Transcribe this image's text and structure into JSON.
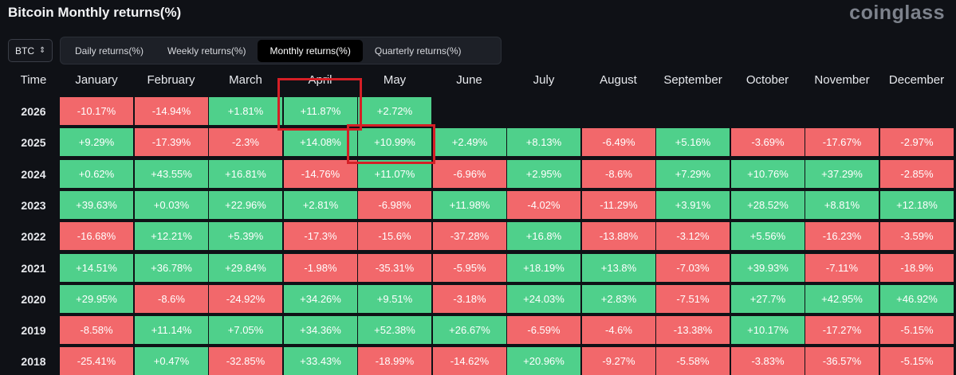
{
  "header": {
    "title": "Bitcoin Monthly returns(%)",
    "brand": "coinglass"
  },
  "asset_select": {
    "value": "BTC"
  },
  "tabs": [
    {
      "label": "Daily returns(%)",
      "active": false
    },
    {
      "label": "Weekly returns(%)",
      "active": false
    },
    {
      "label": "Monthly returns(%)",
      "active": true
    },
    {
      "label": "Quarterly returns(%)",
      "active": false
    }
  ],
  "table": {
    "time_label": "Time",
    "months": [
      "January",
      "February",
      "March",
      "April",
      "May",
      "June",
      "July",
      "August",
      "September",
      "October",
      "November",
      "December"
    ],
    "rows": [
      {
        "year": "2026",
        "values": [
          "-10.17%",
          "-14.94%",
          "+1.81%",
          "+11.87%",
          "+2.72%",
          "",
          "",
          "",
          "",
          "",
          "",
          ""
        ]
      },
      {
        "year": "2025",
        "values": [
          "+9.29%",
          "-17.39%",
          "-2.3%",
          "+14.08%",
          "+10.99%",
          "+2.49%",
          "+8.13%",
          "-6.49%",
          "+5.16%",
          "-3.69%",
          "-17.67%",
          "-2.97%"
        ]
      },
      {
        "year": "2024",
        "values": [
          "+0.62%",
          "+43.55%",
          "+16.81%",
          "-14.76%",
          "+11.07%",
          "-6.96%",
          "+2.95%",
          "-8.6%",
          "+7.29%",
          "+10.76%",
          "+37.29%",
          "-2.85%"
        ]
      },
      {
        "year": "2023",
        "values": [
          "+39.63%",
          "+0.03%",
          "+22.96%",
          "+2.81%",
          "-6.98%",
          "+11.98%",
          "-4.02%",
          "-11.29%",
          "+3.91%",
          "+28.52%",
          "+8.81%",
          "+12.18%"
        ]
      },
      {
        "year": "2022",
        "values": [
          "-16.68%",
          "+12.21%",
          "+5.39%",
          "-17.3%",
          "-15.6%",
          "-37.28%",
          "+16.8%",
          "-13.88%",
          "-3.12%",
          "+5.56%",
          "-16.23%",
          "-3.59%"
        ]
      },
      {
        "year": "2021",
        "values": [
          "+14.51%",
          "+36.78%",
          "+29.84%",
          "-1.98%",
          "-35.31%",
          "-5.95%",
          "+18.19%",
          "+13.8%",
          "-7.03%",
          "+39.93%",
          "-7.11%",
          "-18.9%"
        ]
      },
      {
        "year": "2020",
        "values": [
          "+29.95%",
          "-8.6%",
          "-24.92%",
          "+34.26%",
          "+9.51%",
          "-3.18%",
          "+24.03%",
          "+2.83%",
          "-7.51%",
          "+27.7%",
          "+42.95%",
          "+46.92%"
        ]
      },
      {
        "year": "2019",
        "values": [
          "-8.58%",
          "+11.14%",
          "+7.05%",
          "+34.36%",
          "+52.38%",
          "+26.67%",
          "-6.59%",
          "-4.6%",
          "-13.38%",
          "+10.17%",
          "-17.27%",
          "-5.15%"
        ]
      },
      {
        "year": "2018",
        "values": [
          "-25.41%",
          "+0.47%",
          "-32.85%",
          "+33.43%",
          "-18.99%",
          "-14.62%",
          "+20.96%",
          "-9.27%",
          "-5.58%",
          "-3.83%",
          "-36.57%",
          "-5.15%"
        ]
      }
    ]
  },
  "colors": {
    "positive": "#4fd08b",
    "negative": "#f2686b",
    "highlight": "#d51f26",
    "background": "#0f1116"
  }
}
